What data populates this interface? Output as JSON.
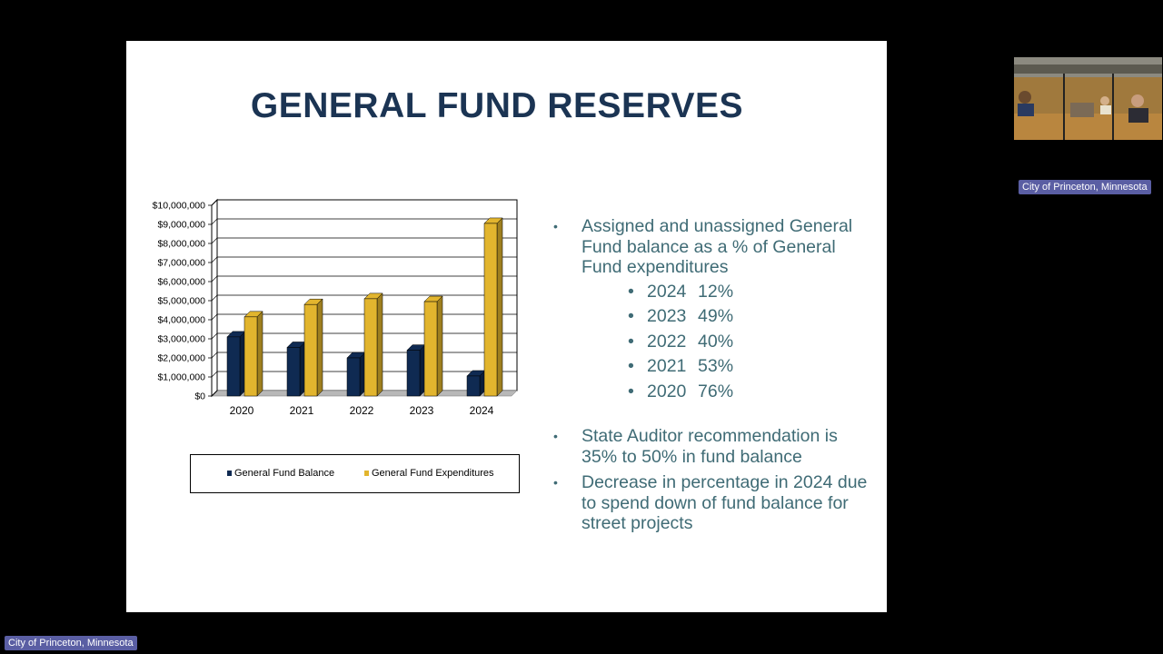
{
  "slide": {
    "title": "GENERAL FUND RESERVES",
    "bullets": [
      {
        "text": "Assigned and unassigned General Fund balance as a % of General Fund expenditures"
      },
      {
        "text": "State Auditor recommendation is 35% to 50% in fund balance"
      },
      {
        "text": "Decrease in percentage in 2024 due to spend down of fund balance for street projects"
      }
    ],
    "percentages": [
      {
        "year": "2024",
        "pct": "12%"
      },
      {
        "year": "2023",
        "pct": "49%"
      },
      {
        "year": "2022",
        "pct": "40%"
      },
      {
        "year": "2021",
        "pct": "53%"
      },
      {
        "year": "2020",
        "pct": "76%"
      }
    ]
  },
  "chart_data": {
    "type": "bar",
    "categories": [
      "2020",
      "2021",
      "2022",
      "2023",
      "2024"
    ],
    "series": [
      {
        "name": "General Fund Balance",
        "color": "#0f2a52",
        "values": [
          3100000,
          2550000,
          2000000,
          2400000,
          1050000
        ]
      },
      {
        "name": "General Fund Expenditures",
        "color": "#e2b52e",
        "values": [
          4150000,
          4800000,
          5100000,
          4950000,
          9050000
        ]
      }
    ],
    "ylim": [
      0,
      10000000
    ],
    "yticks": [
      "$0",
      "$1,000,000",
      "$2,000,000",
      "$3,000,000",
      "$4,000,000",
      "$5,000,000",
      "$6,000,000",
      "$7,000,000",
      "$8,000,000",
      "$9,000,000",
      "$10,000,000"
    ],
    "legend": "bottom",
    "grid": true
  },
  "meeting": {
    "caption_top": "City of Princeton, Minnesota",
    "caption_bottom": "City of Princeton, Minnesota"
  },
  "colors": {
    "title": "#1b3453",
    "bullet_text": "#3f6b75",
    "caption_bg": "#5a5ea3"
  }
}
